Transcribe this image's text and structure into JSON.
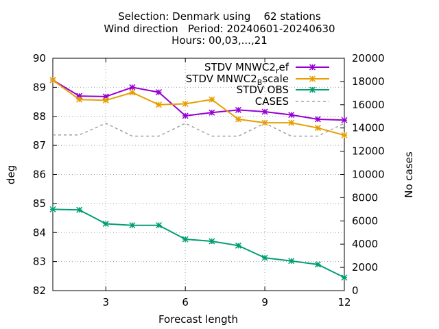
{
  "chart_data": {
    "type": "line",
    "title_lines": [
      "Selection: Denmark using    62 stations",
      "Wind direction   Period: 20240601-20240630",
      "Hours: 00,03,...,21"
    ],
    "xlabel": "Forecast length",
    "ylabel": "deg",
    "y2label": "No cases",
    "xlim": [
      1,
      12
    ],
    "ylim": [
      82,
      90
    ],
    "y2lim": [
      0,
      20000
    ],
    "xticks": [
      "3",
      "6",
      "9",
      "12"
    ],
    "yticks": [
      "82",
      "83",
      "84",
      "85",
      "86",
      "87",
      "88",
      "89",
      "90"
    ],
    "y2ticks": [
      "0",
      "2000",
      "4000",
      "6000",
      "8000",
      "10000",
      "12000",
      "14000",
      "16000",
      "18000",
      "20000"
    ],
    "grid": true,
    "legend_position": "top-right",
    "x": [
      1,
      2,
      3,
      4,
      5,
      6,
      7,
      8,
      9,
      10,
      11,
      12
    ],
    "series": [
      {
        "name": "STDV MNWC2_ref",
        "label_main": "STDV MNWC2",
        "label_sub": "r",
        "label_tail": "ef",
        "color": "#9400d3",
        "axis": "y1",
        "style": "line-star",
        "values": [
          89.25,
          88.7,
          88.68,
          89.0,
          88.83,
          88.02,
          88.13,
          88.22,
          88.16,
          88.05,
          87.9,
          87.87
        ]
      },
      {
        "name": "STDV MNWC2_Bscale",
        "label_main": "STDV MNWC2",
        "label_sub": "B",
        "label_tail": "scale",
        "color": "#e69f00",
        "axis": "y1",
        "style": "line-star",
        "values": [
          89.25,
          88.58,
          88.55,
          88.82,
          88.4,
          88.43,
          88.58,
          87.9,
          87.78,
          87.78,
          87.6,
          87.35
        ]
      },
      {
        "name": "STDV OBS",
        "label_main": "STDV OBS",
        "label_sub": "",
        "label_tail": "",
        "color": "#009e73",
        "axis": "y1",
        "style": "line-star",
        "values": [
          84.8,
          84.78,
          84.3,
          84.25,
          84.25,
          83.77,
          83.7,
          83.55,
          83.13,
          83.02,
          82.9,
          82.45
        ]
      },
      {
        "name": "CASES",
        "label_main": "CASES",
        "label_sub": "",
        "label_tail": "",
        "color": "#a0a0a0",
        "axis": "y2",
        "style": "dashed",
        "values": [
          13400,
          13400,
          14400,
          13300,
          13300,
          14400,
          13300,
          13300,
          14400,
          13300,
          13300,
          14400
        ]
      }
    ]
  }
}
